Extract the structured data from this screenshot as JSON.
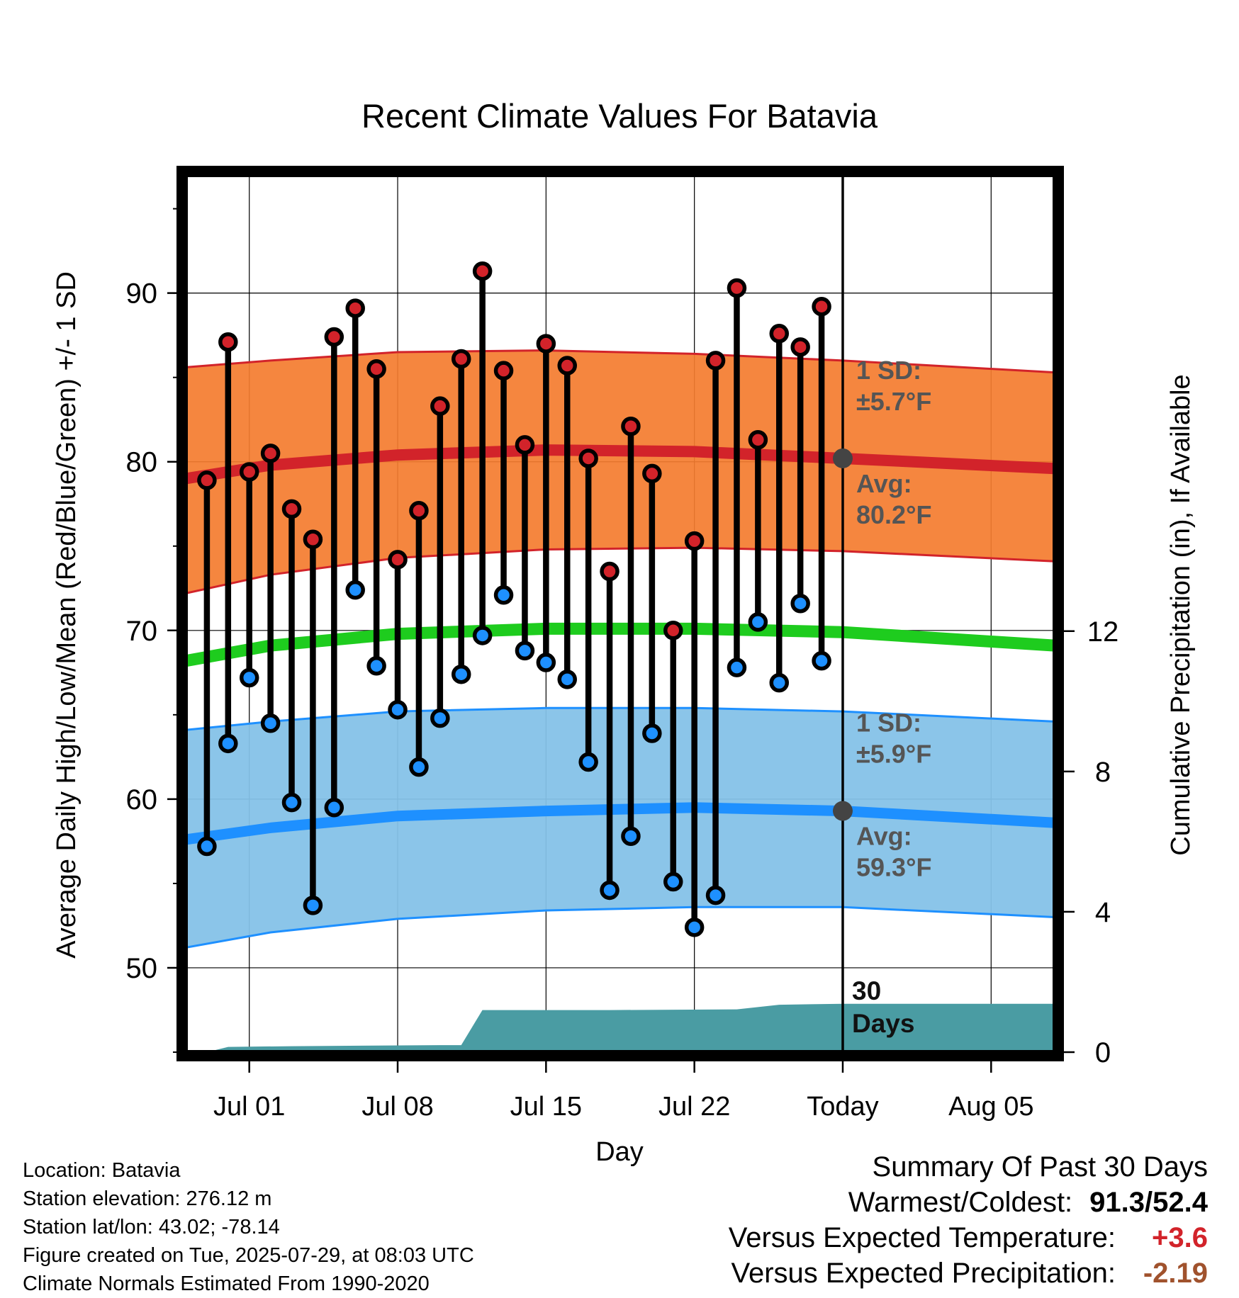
{
  "chart_data": {
    "type": "line",
    "title": "Recent Climate Values For Batavia",
    "xlabel": "Day",
    "ylabel": "Average Daily High/Low/Mean (Red/Blue/Green) +/- 1 SD",
    "y2label": "Cumulative Precipitation (in), If Available",
    "x_range": [
      "2025-06-28",
      "2025-08-08"
    ],
    "ylim": [
      45,
      97
    ],
    "y_ticks": [
      50,
      60,
      70,
      80,
      90
    ],
    "y2lim": [
      0,
      25
    ],
    "y2_ticks": [
      0,
      4,
      8,
      12
    ],
    "x_ticks": [
      {
        "date": "2025-07-01",
        "label": "Jul 01"
      },
      {
        "date": "2025-07-08",
        "label": "Jul 08"
      },
      {
        "date": "2025-07-15",
        "label": "Jul 15"
      },
      {
        "date": "2025-07-22",
        "label": "Jul 22"
      },
      {
        "date": "2025-07-29",
        "label": "Today"
      },
      {
        "date": "2025-08-05",
        "label": "Aug 05"
      }
    ],
    "grid": true,
    "today": "2025-07-29",
    "normals": {
      "x": [
        "2025-06-28",
        "2025-07-02",
        "2025-07-08",
        "2025-07-15",
        "2025-07-22",
        "2025-07-29",
        "2025-08-08"
      ],
      "high_avg": [
        79.0,
        79.8,
        80.4,
        80.7,
        80.6,
        80.2,
        79.6
      ],
      "high_upper": [
        85.6,
        86.0,
        86.5,
        86.6,
        86.4,
        86.0,
        85.3
      ],
      "high_lower": [
        72.2,
        73.3,
        74.3,
        74.8,
        74.9,
        74.7,
        74.1
      ],
      "mean": [
        68.2,
        69.1,
        69.8,
        70.1,
        70.1,
        69.9,
        69.1
      ],
      "low_avg": [
        57.6,
        58.3,
        59.0,
        59.3,
        59.5,
        59.3,
        58.6
      ],
      "low_upper": [
        64.1,
        64.6,
        65.2,
        65.4,
        65.4,
        65.2,
        64.6
      ],
      "low_lower": [
        51.2,
        52.1,
        52.9,
        53.4,
        53.6,
        53.6,
        53.0
      ]
    },
    "daily": {
      "dates": [
        "2025-06-29",
        "2025-06-30",
        "2025-07-01",
        "2025-07-02",
        "2025-07-03",
        "2025-07-04",
        "2025-07-05",
        "2025-07-06",
        "2025-07-07",
        "2025-07-08",
        "2025-07-09",
        "2025-07-10",
        "2025-07-11",
        "2025-07-12",
        "2025-07-13",
        "2025-07-14",
        "2025-07-15",
        "2025-07-16",
        "2025-07-17",
        "2025-07-18",
        "2025-07-19",
        "2025-07-20",
        "2025-07-21",
        "2025-07-22",
        "2025-07-23",
        "2025-07-24",
        "2025-07-25",
        "2025-07-26",
        "2025-07-27",
        "2025-07-28"
      ],
      "high": [
        78.9,
        87.1,
        79.4,
        80.5,
        77.2,
        75.4,
        87.4,
        89.1,
        85.5,
        74.2,
        77.1,
        83.3,
        86.1,
        91.3,
        85.4,
        81.0,
        87.0,
        85.7,
        80.2,
        73.5,
        82.1,
        79.3,
        70.0,
        75.3,
        86.0,
        90.3,
        81.3,
        87.6,
        86.8,
        89.2
      ],
      "low": [
        57.2,
        63.3,
        67.2,
        64.5,
        59.8,
        53.7,
        59.5,
        72.4,
        67.9,
        65.3,
        61.9,
        64.8,
        67.4,
        69.7,
        72.1,
        68.8,
        68.1,
        67.1,
        62.2,
        54.6,
        57.8,
        63.9,
        55.1,
        52.4,
        54.3,
        67.8,
        70.5,
        66.9,
        71.6,
        68.2
      ]
    },
    "precip": {
      "x": [
        "2025-06-28",
        "2025-06-29",
        "2025-06-30",
        "2025-07-03",
        "2025-07-10",
        "2025-07-11",
        "2025-07-12",
        "2025-07-18",
        "2025-07-24",
        "2025-07-26",
        "2025-07-29",
        "2025-08-08"
      ],
      "cumulative": [
        0,
        0,
        0.15,
        0.17,
        0.2,
        0.2,
        1.2,
        1.2,
        1.22,
        1.35,
        1.38,
        1.38
      ]
    },
    "annotations": {
      "high_sd": [
        "1 SD:",
        "±5.7°F"
      ],
      "high_avg": [
        "Avg:",
        "80.2°F"
      ],
      "low_sd": [
        "1 SD:",
        "±5.9°F"
      ],
      "low_avg": [
        "Avg:",
        "59.3°F"
      ],
      "days": [
        "30",
        "Days"
      ]
    },
    "colors": {
      "high_band": "#f47c2f",
      "high_edge": "#d2232a",
      "high_avg": "#d2232a",
      "low_band": "#85c2e8",
      "low_edge": "#1e90ff",
      "low_avg": "#1e90ff",
      "mean": "#1ecc1e",
      "precip": "#4a9ca3",
      "high_marker": "#d2232a",
      "low_marker": "#1e90ff",
      "annotation": "#555555",
      "today_marker": "#444444"
    }
  },
  "info": {
    "location": "Location: Batavia",
    "elevation": "Station elevation: 276.12 m",
    "latlon": "Station lat/lon: 43.02; -78.14",
    "created": "Figure created on Tue, 2025-07-29, at 08:03 UTC",
    "normals": "Climate Normals Estimated From 1990-2020"
  },
  "summary": {
    "title": "Summary Of Past 30 Days",
    "warmest_label": "Warmest/Coldest:",
    "warmest_value": "91.3/52.4",
    "temp_label": "Versus Expected Temperature:",
    "temp_value": "+3.6",
    "temp_color": "#d2232a",
    "precip_label": "Versus Expected Precipitation:",
    "precip_value": "-2.19",
    "precip_color": "#a0522d"
  }
}
